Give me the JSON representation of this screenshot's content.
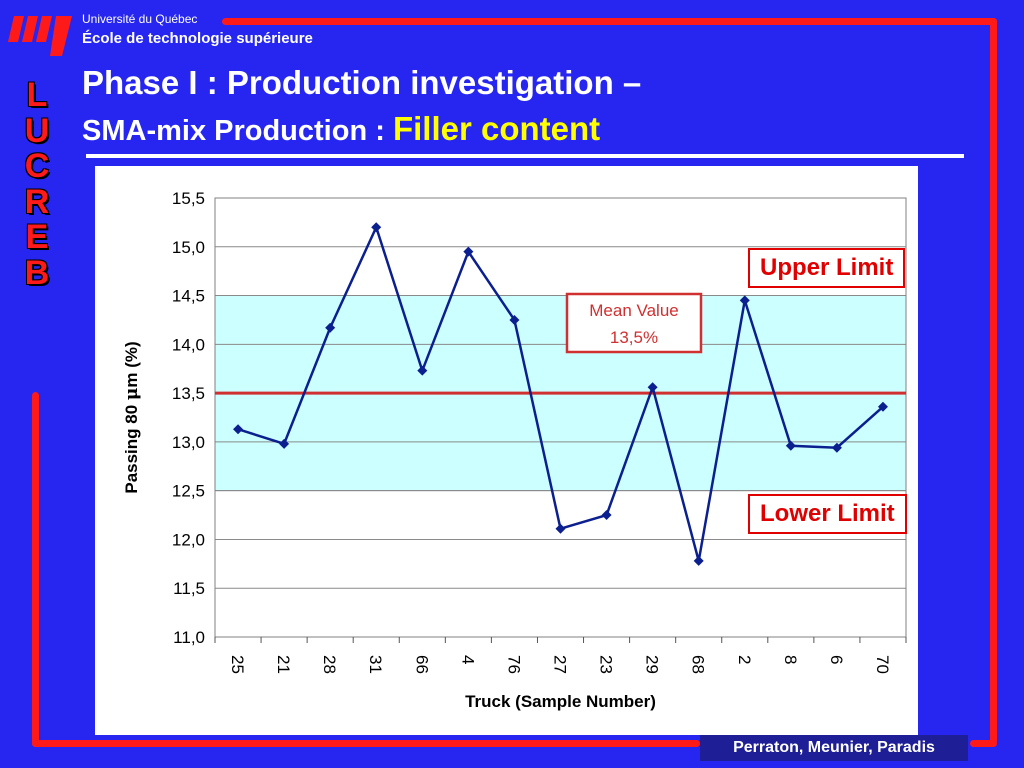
{
  "header": {
    "university": "Université du Québec",
    "school": "École de technologie supérieure",
    "vertical_logo": [
      "L",
      "U",
      "C",
      "R",
      "E",
      "B"
    ]
  },
  "slide": {
    "title_line1": "Phase I : Production investigation –",
    "title_line2_a": "SMA-mix Production : ",
    "title_line2_b": "Filler content",
    "upper_limit_label": "Upper Limit",
    "lower_limit_label": "Lower Limit",
    "footer": "Perraton, Meunier, Paradis"
  },
  "colors": {
    "background": "#2626f0",
    "frame": "#ff1a1a",
    "title_highlight": "#ffff00",
    "line": "#0b1f8f",
    "band": "#ccffff",
    "mean": "#d03030"
  },
  "icons": {
    "logo": "ets-logo-icon"
  },
  "chart_data": {
    "type": "line",
    "xlabel": "Truck (Sample Number)",
    "ylabel_prefix": "Passing 80 ",
    "ylabel_mu": "μ",
    "ylabel_suffix": "m (%)",
    "categories": [
      "25",
      "21",
      "28",
      "31",
      "66",
      "4",
      "76",
      "27",
      "23",
      "29",
      "68",
      "2",
      "8",
      "6",
      "70"
    ],
    "series": [
      {
        "values": [
          13.13,
          12.98,
          14.17,
          15.2,
          13.73,
          14.95,
          14.25,
          12.11,
          12.25,
          13.56,
          11.78,
          14.45,
          12.96,
          12.94,
          13.36
        ]
      }
    ],
    "ylim": [
      11.0,
      15.5
    ],
    "yticks": [
      "11,0",
      "11,5",
      "12,0",
      "12,5",
      "13,0",
      "13,5",
      "14,0",
      "14,5",
      "15,0",
      "15,5"
    ],
    "band": [
      12.5,
      14.5
    ],
    "mean": 13.5,
    "mean_label_line1": "Mean Value",
    "mean_label_line2": "13,5%",
    "grid": true
  }
}
